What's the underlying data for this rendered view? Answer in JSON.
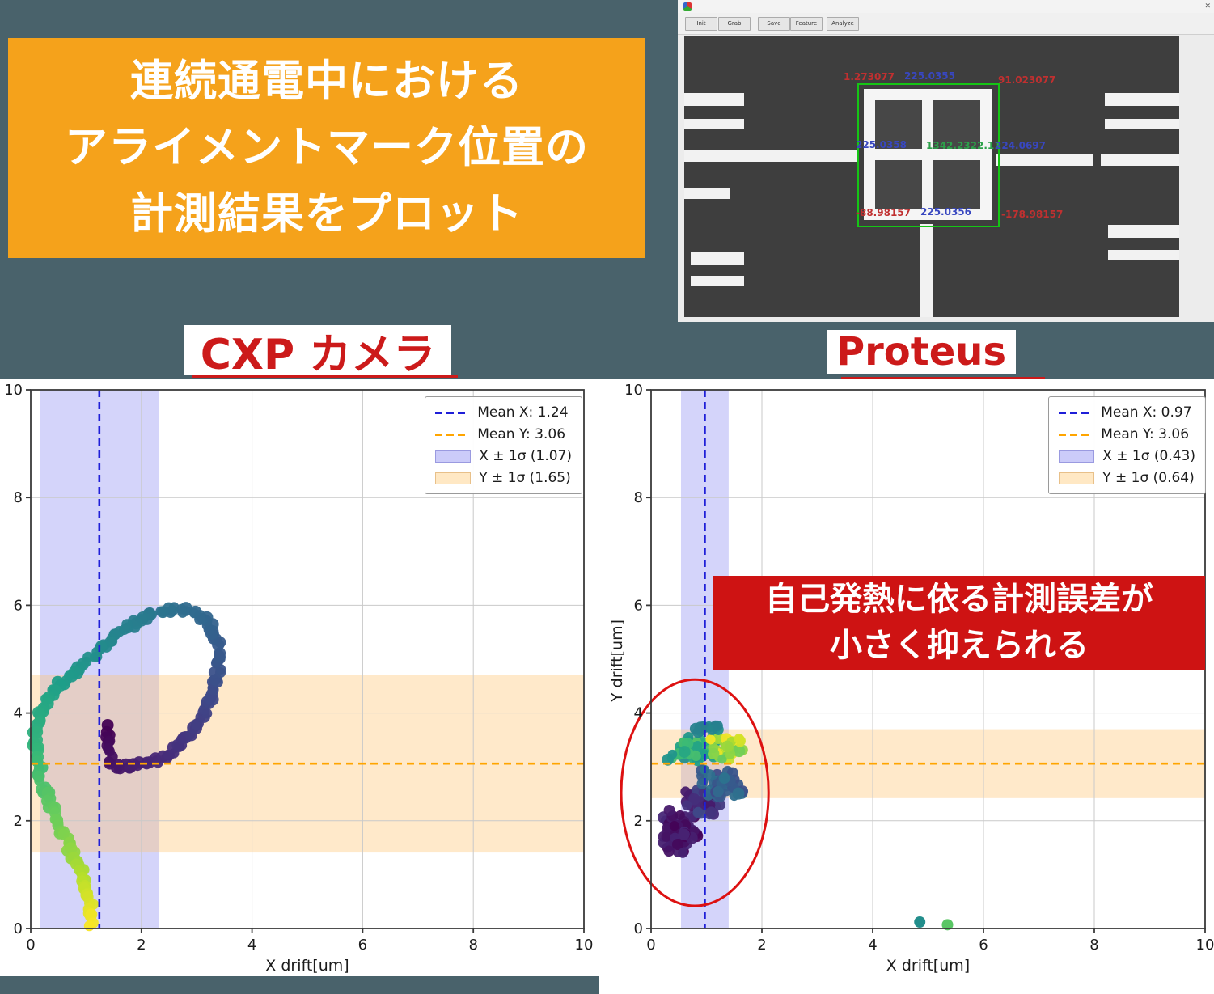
{
  "slide": {
    "background": "#49626b",
    "intro_box": {
      "bg": "#F5A21B",
      "lines": [
        "連続通電中における",
        "アライメントマーク位置の",
        "計測結果をプロット"
      ]
    }
  },
  "camera_window": {
    "toolbar_buttons": [
      "Init",
      "Grab",
      "Save",
      "Feature",
      "Analyze"
    ],
    "close_label": "✕",
    "annotations": {
      "top_left_red": "1.273077",
      "top_blue": "225.0355",
      "top_right_red": "91.023077",
      "mid_left_blue": "225.0358",
      "mid_green": "1342.2322.11",
      "mid_right_blue": "224.0697",
      "bottom_left_red": "-88.98157",
      "bottom_blue": "225.0356",
      "bottom_right_red": "-178.98157"
    }
  },
  "chart_data": [
    {
      "type": "scatter",
      "title": "CXP カメラ",
      "xlabel": "X drift[um]",
      "ylabel": "",
      "xlim": [
        0,
        10
      ],
      "ylim": [
        0,
        10
      ],
      "xticks": [
        0,
        2,
        4,
        6,
        8,
        10
      ],
      "yticks": [
        0,
        2,
        4,
        6,
        8,
        10
      ],
      "mean_x": 1.24,
      "mean_y": 3.06,
      "sigma_x": 1.07,
      "sigma_y": 1.65,
      "legend": [
        "Mean X: 1.24",
        "Mean Y: 3.06",
        "X ± 1σ (1.07)",
        "Y ± 1σ (1.65)"
      ],
      "colors": {
        "mean_x": "#1f1fd8",
        "mean_y": "#FFA500",
        "band_x": "rgba(122,122,240,0.32)",
        "band_y": "rgba(255,198,115,0.38)",
        "colormap": "viridis"
      },
      "trajectory": [
        [
          1.42,
          3.72
        ],
        [
          1.38,
          3.42
        ],
        [
          1.44,
          3.14
        ],
        [
          1.58,
          3.02
        ],
        [
          1.78,
          3.0
        ],
        [
          2.0,
          3.04
        ],
        [
          2.22,
          3.1
        ],
        [
          2.45,
          3.2
        ],
        [
          2.68,
          3.38
        ],
        [
          2.9,
          3.62
        ],
        [
          3.08,
          3.92
        ],
        [
          3.22,
          4.22
        ],
        [
          3.32,
          4.52
        ],
        [
          3.38,
          4.82
        ],
        [
          3.4,
          5.1
        ],
        [
          3.36,
          5.38
        ],
        [
          3.24,
          5.62
        ],
        [
          3.05,
          5.8
        ],
        [
          2.8,
          5.9
        ],
        [
          2.52,
          5.92
        ],
        [
          2.24,
          5.86
        ],
        [
          1.96,
          5.74
        ],
        [
          1.68,
          5.56
        ],
        [
          1.4,
          5.34
        ],
        [
          1.14,
          5.1
        ],
        [
          0.88,
          4.86
        ],
        [
          0.62,
          4.62
        ],
        [
          0.4,
          4.38
        ],
        [
          0.24,
          4.12
        ],
        [
          0.13,
          3.84
        ],
        [
          0.08,
          3.55
        ],
        [
          0.1,
          3.24
        ],
        [
          0.16,
          2.92
        ],
        [
          0.24,
          2.62
        ],
        [
          0.35,
          2.3
        ],
        [
          0.48,
          2.0
        ],
        [
          0.62,
          1.7
        ],
        [
          0.76,
          1.4
        ],
        [
          0.9,
          1.1
        ],
        [
          1.0,
          0.8
        ],
        [
          1.07,
          0.5
        ],
        [
          1.1,
          0.22
        ],
        [
          1.1,
          0.04
        ]
      ]
    },
    {
      "type": "scatter",
      "title": "Proteus",
      "xlabel": "X drift[um]",
      "ylabel": "Y drift[um]",
      "xlim": [
        0,
        10
      ],
      "ylim": [
        0,
        10
      ],
      "xticks": [
        0,
        2,
        4,
        6,
        8,
        10
      ],
      "yticks": [
        0,
        2,
        4,
        6,
        8,
        10
      ],
      "mean_x": 0.97,
      "mean_y": 3.06,
      "sigma_x": 0.43,
      "sigma_y": 0.64,
      "legend": [
        "Mean X: 0.97",
        "Mean Y: 3.06",
        "X ± 1σ (0.43)",
        "Y ± 1σ (0.64)"
      ],
      "colors": {
        "mean_x": "#1f1fd8",
        "mean_y": "#FFA500",
        "band_x": "rgba(122,122,240,0.32)",
        "band_y": "rgba(255,198,115,0.38)",
        "colormap": "viridis",
        "ellipse": "#dd1111"
      },
      "clusters": [
        {
          "cx": 0.52,
          "cy": 1.78,
          "rx": 0.4,
          "ry": 0.5,
          "n": 70,
          "t0": 0.0,
          "t1": 0.12
        },
        {
          "cx": 0.95,
          "cy": 2.35,
          "rx": 0.45,
          "ry": 0.28,
          "n": 40,
          "t0": 0.05,
          "t1": 0.25
        },
        {
          "cx": 1.25,
          "cy": 2.7,
          "rx": 0.45,
          "ry": 0.3,
          "n": 45,
          "t0": 0.25,
          "t1": 0.45
        },
        {
          "cx": 0.75,
          "cy": 3.35,
          "rx": 0.5,
          "ry": 0.28,
          "n": 50,
          "t0": 0.55,
          "t1": 0.8
        },
        {
          "cx": 1.35,
          "cy": 3.35,
          "rx": 0.32,
          "ry": 0.3,
          "n": 40,
          "t0": 0.82,
          "t1": 1.0
        },
        {
          "cx": 0.95,
          "cy": 3.72,
          "rx": 0.45,
          "ry": 0.1,
          "n": 12,
          "t0": 0.45,
          "t1": 0.6
        }
      ],
      "outliers": [
        [
          4.85,
          0.12,
          0.55
        ],
        [
          5.35,
          0.07,
          0.8
        ]
      ],
      "ellipse": {
        "cx": 0.79,
        "cy": 2.52,
        "rx": 1.33,
        "ry": 2.1
      },
      "annotation": {
        "lines": [
          "自己発熱に依る計測誤差が",
          "小さく抑えられる"
        ]
      }
    }
  ]
}
